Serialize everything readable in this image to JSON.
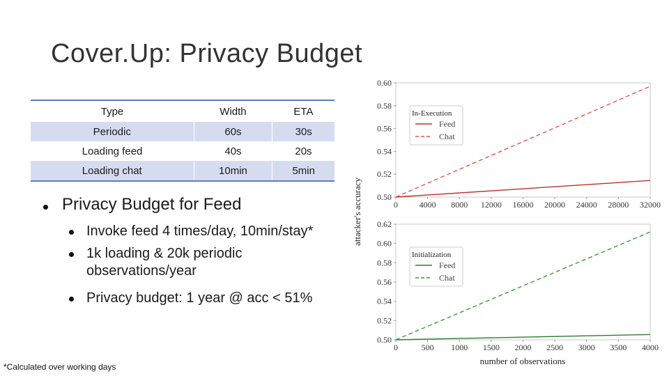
{
  "slide": {
    "title": "Cover.Up: Privacy Budget",
    "footnote": "*Calculated over working days"
  },
  "table": {
    "headers": [
      "Type",
      "Width",
      "ETA"
    ],
    "rows": [
      [
        "Periodic",
        "60s",
        "30s"
      ],
      [
        "Loading feed",
        "40s",
        "20s"
      ],
      [
        "Loading chat",
        "10min",
        "5min"
      ]
    ]
  },
  "bullets": {
    "main": "Privacy Budget for Feed",
    "sub": [
      "Invoke feed 4 times/day, 10min/stay*",
      "1k loading & 20k periodic observations/year",
      "Privacy budget: 1 year @ acc < 51%"
    ]
  },
  "colors": {
    "feed": "#c0302c",
    "chat": "#e0564f",
    "feed_init": "#2e7a2e",
    "chat_init": "#3a9c3a",
    "table_rule": "#5b7bbf",
    "table_shade": "#d6dcf0"
  },
  "chart_data": [
    {
      "type": "line",
      "title": "",
      "legend_title": "In-Execution",
      "legend_position": "top-left",
      "ylabel": "attacker's accuracy",
      "xlabel": "",
      "x_ticks": [
        "0",
        "4000",
        "8000",
        "12000",
        "16000",
        "20000",
        "24000",
        "28000",
        "32000"
      ],
      "y_ticks": [
        "0.50",
        "0.52",
        "0.54",
        "0.56",
        "0.58",
        "0.60"
      ],
      "xlim": [
        0,
        32000
      ],
      "ylim": [
        0.5,
        0.6
      ],
      "series": [
        {
          "name": "Feed",
          "style": "solid",
          "x": [
            0,
            32000
          ],
          "y": [
            0.5,
            0.5145
          ]
        },
        {
          "name": "Chat",
          "style": "dashed",
          "x": [
            0,
            32000
          ],
          "y": [
            0.5,
            0.597
          ]
        }
      ]
    },
    {
      "type": "line",
      "title": "",
      "legend_title": "Initialization",
      "legend_position": "top-left",
      "ylabel": "attacker's accuracy",
      "xlabel": "number of observations",
      "x_ticks": [
        "0",
        "500",
        "1000",
        "1500",
        "2000",
        "2500",
        "3000",
        "3500",
        "4000"
      ],
      "y_ticks": [
        "0.50",
        "0.52",
        "0.54",
        "0.56",
        "0.58",
        "0.60",
        "0.62"
      ],
      "xlim": [
        0,
        4000
      ],
      "ylim": [
        0.5,
        0.62
      ],
      "series": [
        {
          "name": "Feed",
          "style": "solid",
          "x": [
            0,
            4000
          ],
          "y": [
            0.5,
            0.5055
          ]
        },
        {
          "name": "Chat",
          "style": "dashed",
          "x": [
            0,
            4000
          ],
          "y": [
            0.5,
            0.612
          ]
        }
      ]
    }
  ]
}
